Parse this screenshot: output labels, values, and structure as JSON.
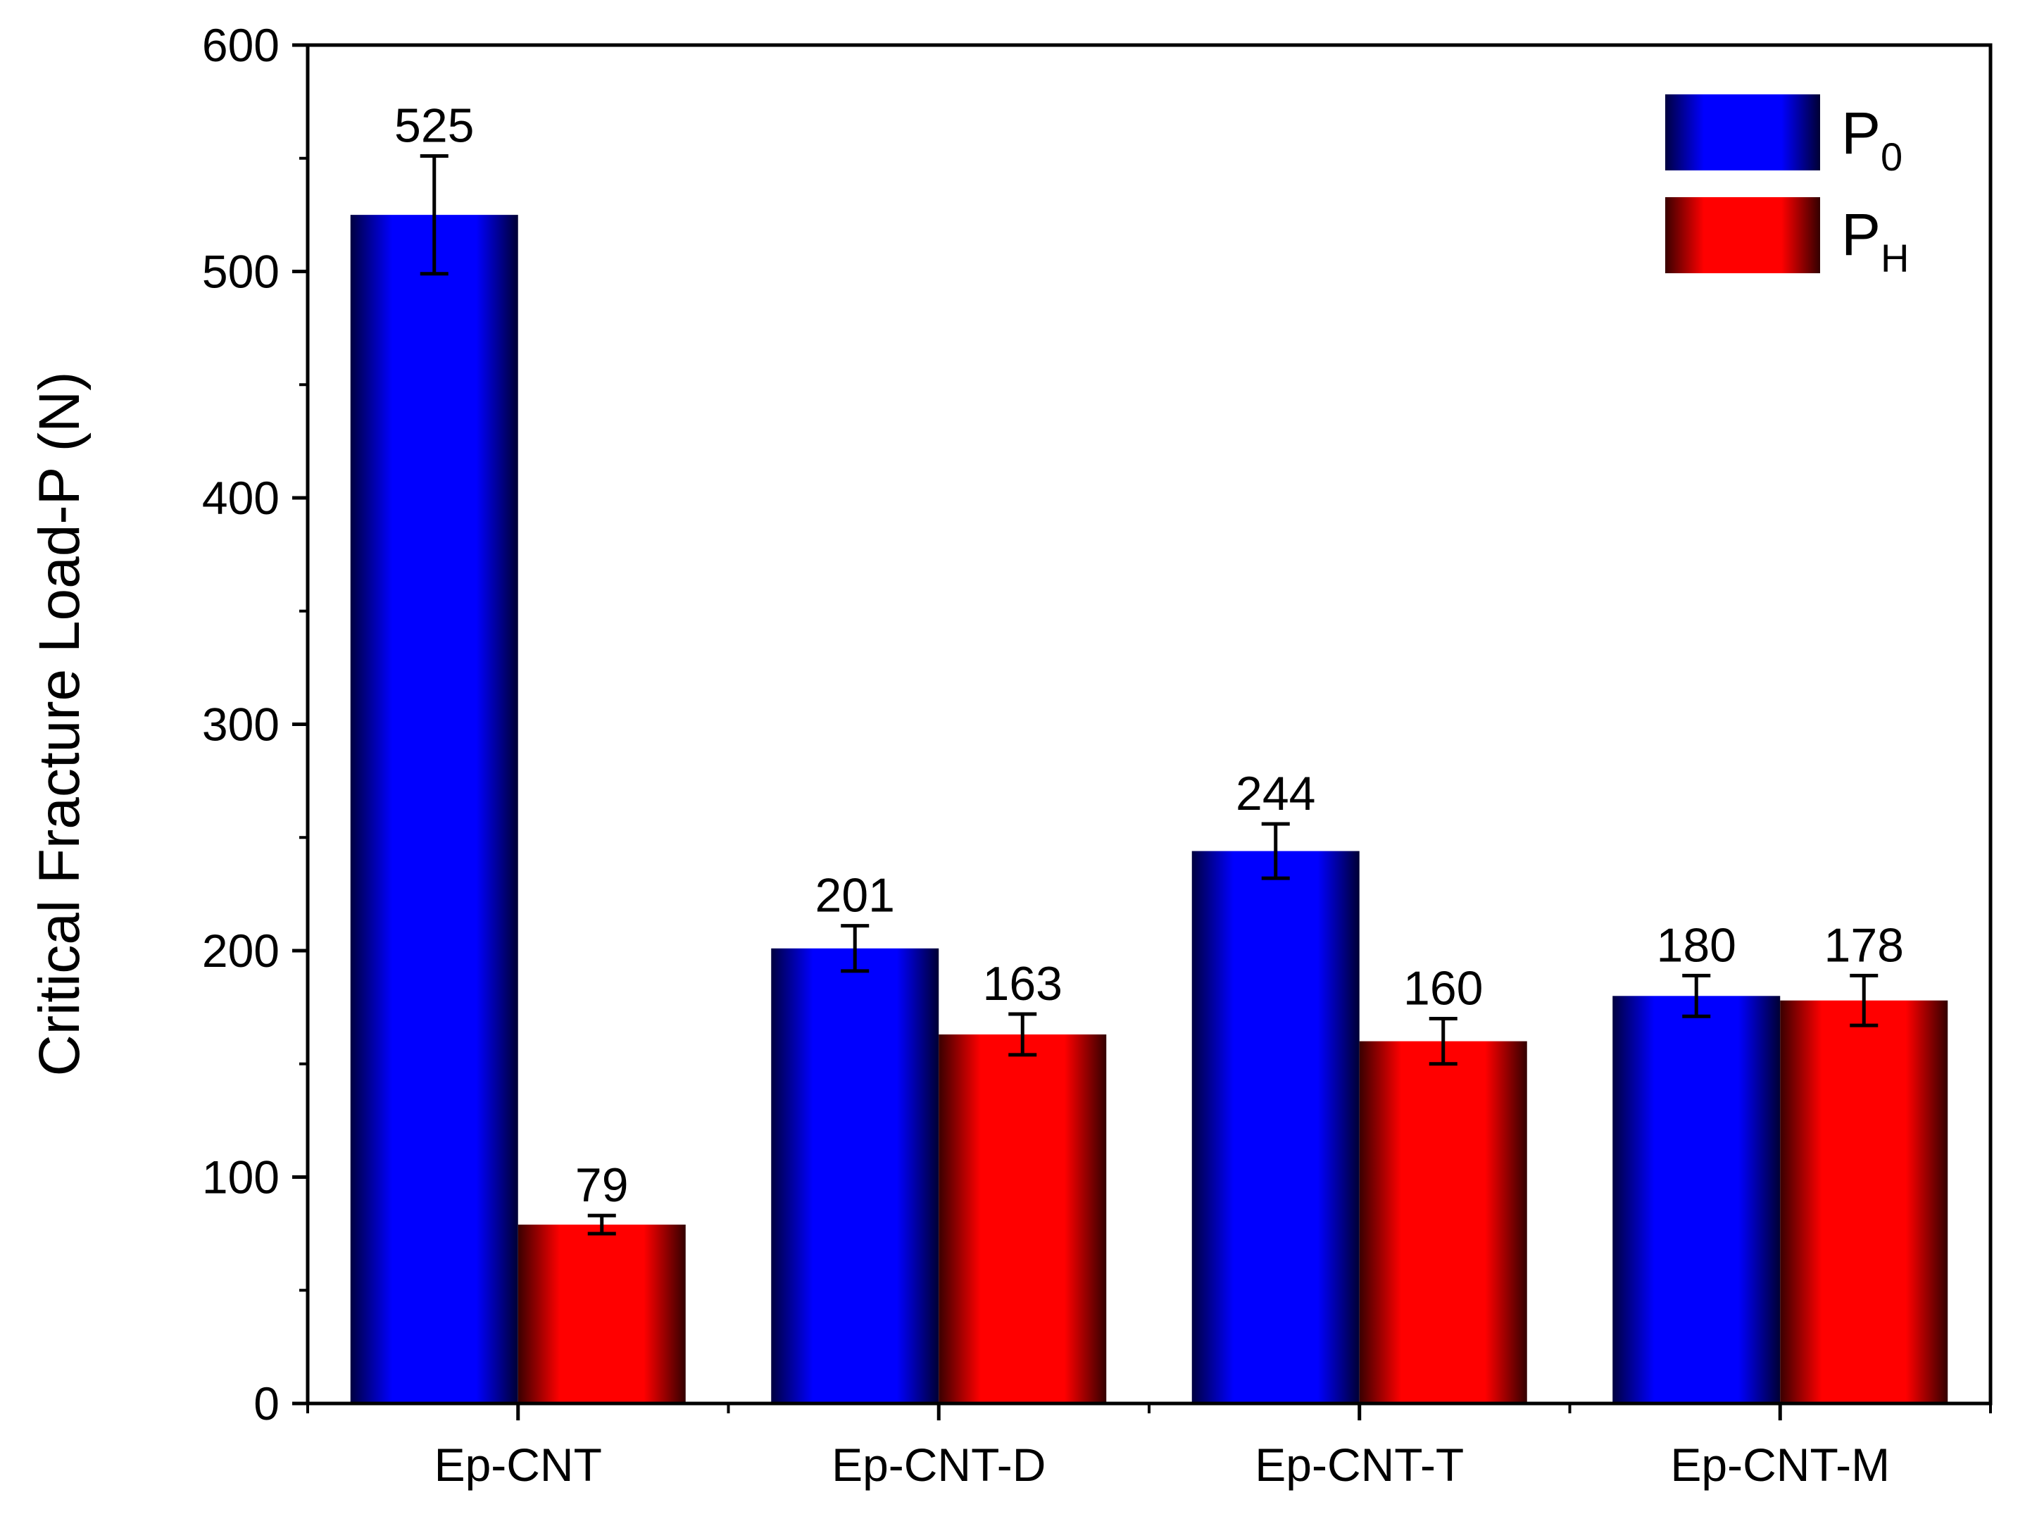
{
  "chart_data": {
    "type": "bar",
    "title": "",
    "xlabel": "",
    "ylabel": "Critical Fracture Load-P (N)",
    "ylim": [
      0,
      600
    ],
    "yticks": [
      0,
      100,
      200,
      300,
      400,
      500,
      600
    ],
    "categories": [
      "Ep-CNT",
      "Ep-CNT-D",
      "Ep-CNT-T",
      "Ep-CNT-M"
    ],
    "series": [
      {
        "name": "P",
        "name_subscript": "0",
        "color": "#0000ff",
        "values": [
          525,
          201,
          244,
          180
        ],
        "errors": [
          26,
          10,
          12,
          9
        ],
        "labels": [
          "525",
          "201",
          "244",
          "180"
        ]
      },
      {
        "name": "P",
        "name_subscript": "H",
        "color": "#ff0000",
        "values": [
          79,
          163,
          160,
          178
        ],
        "errors": [
          4,
          9,
          10,
          11
        ],
        "labels": [
          "79",
          "163",
          "160",
          "178"
        ]
      }
    ],
    "legend": "top-right",
    "grid": false
  }
}
